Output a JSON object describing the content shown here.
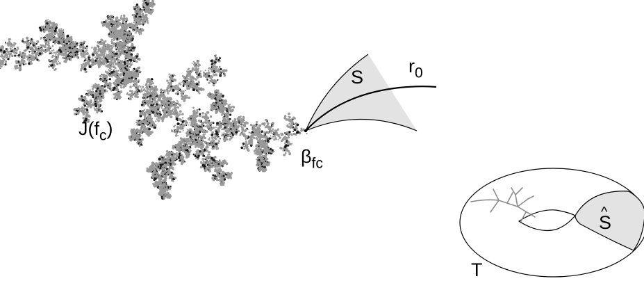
{
  "labels": {
    "julia_set": {
      "main": "J(f",
      "sub": "c",
      "close": ")"
    },
    "sector": "S",
    "ray": {
      "main": "r",
      "sub": "0"
    },
    "fixed_point": {
      "main": "β",
      "sub": "fc"
    },
    "torus": "T",
    "sector_hat": "S"
  },
  "colors": {
    "ink": "#000000",
    "fractal_grey": "#999999",
    "fractal_dark": "#1a1a1a",
    "sector_fill": "#e3e3e3",
    "tree_grey": "#8c8c8c"
  }
}
